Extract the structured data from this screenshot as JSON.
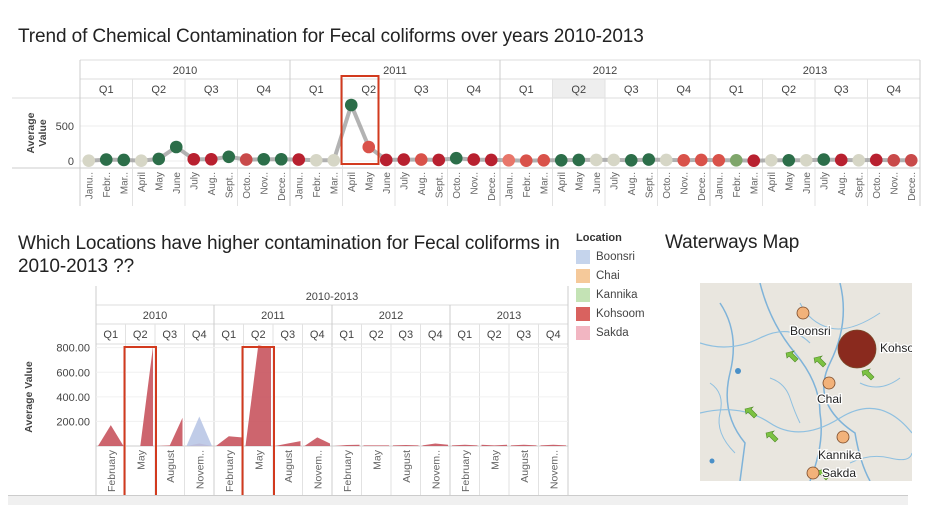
{
  "chart_data": [
    {
      "type": "scatter",
      "title": "Trend of Chemical Contamination for Fecal coliforms over years 2010-2013",
      "ylabel": "Average Value",
      "ylim": [
        -100,
        900
      ],
      "yticks": [
        0,
        500
      ],
      "years": [
        "2010",
        "2011",
        "2012",
        "2013"
      ],
      "quarters": [
        "Q1",
        "Q2",
        "Q3",
        "Q4"
      ],
      "highlighted_header": "2012 Q2",
      "months": [
        "Janu..",
        "Febr..",
        "Mar..",
        "April",
        "May",
        "June",
        "July",
        "Aug..",
        "Sept..",
        "Octo..",
        "Nov..",
        "Dece..",
        "Janu..",
        "Febr..",
        "Mar..",
        "April",
        "May",
        "June",
        "July",
        "Aug..",
        "Sept..",
        "Octo..",
        "Nov..",
        "Dece..",
        "Janu..",
        "Febr..",
        "Mar..",
        "April",
        "May",
        "June",
        "July",
        "Aug..",
        "Sept..",
        "Octo..",
        "Nov..",
        "Dece..",
        "Janu..",
        "Febr..",
        "Mar..",
        "April",
        "May",
        "June",
        "July",
        "Aug..",
        "Sept..",
        "Octo..",
        "Nov..",
        "Dece.."
      ],
      "values": [
        5,
        20,
        15,
        5,
        30,
        200,
        25,
        25,
        60,
        20,
        25,
        25,
        20,
        10,
        10,
        800,
        200,
        15,
        20,
        20,
        15,
        40,
        20,
        15,
        10,
        5,
        10,
        10,
        15,
        15,
        15,
        10,
        20,
        15,
        10,
        15,
        10,
        10,
        5,
        10,
        10,
        10,
        20,
        15,
        10,
        15,
        10,
        10
      ],
      "dot_colors": [
        "#d6d6c6",
        "#2c6e49",
        "#2c6e49",
        "#d6d6c6",
        "#2c6e49",
        "#2c6e49",
        "#b8202f",
        "#b8202f",
        "#2c6e49",
        "#c94a4a",
        "#2c6e49",
        "#2c6e49",
        "#b8202f",
        "#d6d6c6",
        "#d6d6c6",
        "#2c6e49",
        "#d9524a",
        "#b8202f",
        "#b8202f",
        "#d9524a",
        "#b8202f",
        "#2c6e49",
        "#b8202f",
        "#b8202f",
        "#e8766a",
        "#d9524a",
        "#d9524a",
        "#2c6e49",
        "#2c6e49",
        "#d6d6c6",
        "#d6d6c6",
        "#2c6e49",
        "#2c6e49",
        "#d6d6c6",
        "#d9524a",
        "#d9524a",
        "#d9524a",
        "#7fa66b",
        "#b8202f",
        "#d6d6c6",
        "#2c6e49",
        "#d6d6c6",
        "#2c6e49",
        "#b8202f",
        "#d6d6c6",
        "#b8202f",
        "#c94a4a",
        "#c94a4a"
      ],
      "highlight_months": [
        15,
        16
      ]
    },
    {
      "type": "area",
      "title": "Which Locations have higher contamination for Fecal coliforms in 2010-2013 ??",
      "column_header": "2010-2013",
      "ylabel": "Average Value",
      "ylim": [
        0,
        830
      ],
      "yticks": [
        "200.00",
        "400.00",
        "600.00",
        "800.00"
      ],
      "ytick_values": [
        200,
        400,
        600,
        800
      ],
      "years": [
        "2010",
        "2011",
        "2012",
        "2013"
      ],
      "quarters": [
        "Q1",
        "Q2",
        "Q3",
        "Q4"
      ],
      "month_labels": [
        "February",
        "May",
        "August",
        "Novem..",
        "February",
        "May",
        "August",
        "Novem..",
        "February",
        "May",
        "August",
        "Novem..",
        "February",
        "May",
        "August",
        "Novem.."
      ],
      "series": [
        {
          "name": "Kohsoom",
          "color": "#c8545e",
          "quarters": [
            [
              0,
              170,
              0
            ],
            [
              0,
              0,
              810
            ],
            [
              0,
              5,
              230
            ],
            [
              0,
              20,
              0
            ],
            [
              0,
              80,
              70
            ],
            [
              0,
              820,
              800
            ],
            [
              0,
              20,
              40
            ],
            [
              0,
              70,
              20
            ],
            [
              0,
              8,
              10
            ],
            [
              5,
              5,
              5
            ],
            [
              5,
              8,
              5
            ],
            [
              5,
              20,
              10
            ],
            [
              5,
              10,
              5
            ],
            [
              10,
              5,
              10
            ],
            [
              5,
              10,
              5
            ],
            [
              5,
              10,
              5
            ]
          ]
        },
        {
          "name": "Boonsri",
          "color": "#b9c7e6",
          "quarters": [
            [
              0,
              0,
              0
            ],
            [
              0,
              0,
              0
            ],
            [
              0,
              0,
              0
            ],
            [
              0,
              240,
              0
            ],
            [
              0,
              0,
              0
            ],
            [
              0,
              0,
              0
            ],
            [
              0,
              0,
              0
            ],
            [
              0,
              0,
              0
            ],
            [
              0,
              0,
              0
            ],
            [
              0,
              0,
              0
            ],
            [
              0,
              0,
              0
            ],
            [
              0,
              0,
              0
            ],
            [
              0,
              0,
              0
            ],
            [
              0,
              0,
              0
            ],
            [
              0,
              0,
              0
            ],
            [
              0,
              0,
              0
            ]
          ]
        }
      ],
      "highlight_quarters": [
        1,
        5
      ]
    }
  ],
  "legend": {
    "title": "Location",
    "items": [
      {
        "name": "Boonsri",
        "color": "#c5d4ec"
      },
      {
        "name": "Chai",
        "color": "#f5c99a"
      },
      {
        "name": "Kannika",
        "color": "#c4e3b5"
      },
      {
        "name": "Kohsoom",
        "color": "#d9625f"
      },
      {
        "name": "Sakda",
        "color": "#f2b6c2"
      }
    ]
  },
  "map": {
    "title": "Waterways Map",
    "locations": [
      {
        "name": "Boonsri",
        "marker_color": "#f2b27a"
      },
      {
        "name": "Kohsoom",
        "marker_color": "#8a2a1e"
      },
      {
        "name": "Chai",
        "marker_color": "#f2b27a"
      },
      {
        "name": "Kannika",
        "marker_color": "#f2b27a"
      },
      {
        "name": "Sakda",
        "marker_color": "#f2b27a"
      }
    ]
  },
  "highlight_color": "#d23a1e"
}
